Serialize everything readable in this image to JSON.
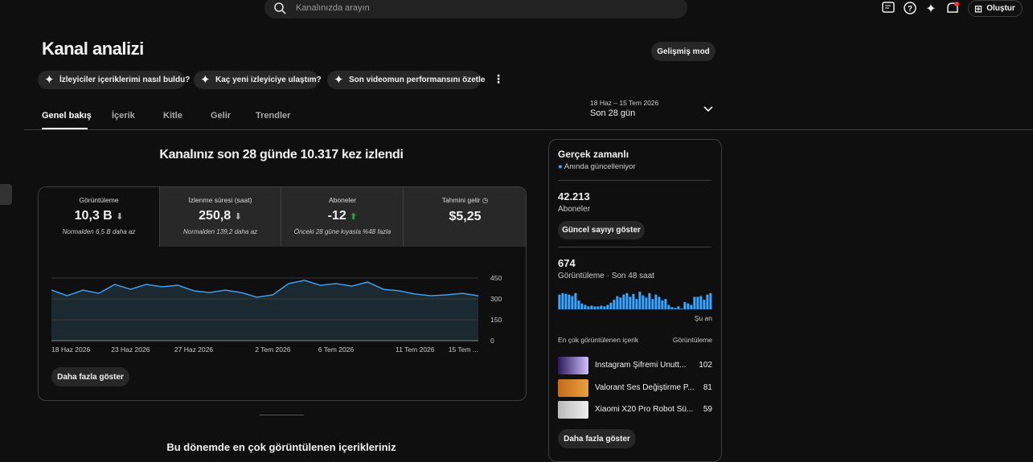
{
  "header": {
    "search_placeholder": "Kanalınızda arayın",
    "create": "Oluştur"
  },
  "page": {
    "title": "Kanal analizi",
    "advanced_mode": "Gelişmiş mod"
  },
  "suggestions": [
    "İzleyiciler içeriklerimi nasıl buldu?",
    "Kaç yeni izleyiciye ulaştım?",
    "Son videomun performansını özetle"
  ],
  "tabs": [
    "Genel bakış",
    "İçerik",
    "Kitle",
    "Gelir",
    "Trendler"
  ],
  "date_range": {
    "range": "18 Haz – 15 Tem 2026",
    "label": "Son 28 gün"
  },
  "summary": {
    "headline": "Kanalınız son 28 günde 10.317 kez izlendi",
    "more": "Daha fazla göster",
    "section_heading": "Bu dönemde en çok görüntülenen içerikleriniz"
  },
  "metrics": [
    {
      "label": "Görüntüleme",
      "value": "10,3 B",
      "note": "Normalden 6,5 B daha az"
    },
    {
      "label": "İzlenme süresi (saat)",
      "value": "250,8",
      "note": "Normalden 139,2 daha az"
    },
    {
      "label": "Aboneler",
      "value": "-12",
      "note": "Önceki 28 güne kıyasla %48 fazla"
    },
    {
      "label": "Tahmini gelir",
      "value": "$5,25"
    }
  ],
  "realtime": {
    "title": "Gerçek zamanlı",
    "status": "Anında güncelleniyor",
    "subscribers": "42.213",
    "subscribers_label": "Aboneler",
    "show_count": "Güncel sayıyı göster",
    "views": "674",
    "views_label": "Görüntüleme · Son 48 saat",
    "now": "Şu an",
    "top_header": "En çok görüntülenen içerik",
    "top_metric": "Görüntüleme",
    "more": "Daha fazla göster",
    "top_content": [
      {
        "title": "Instagram Şifremi Unutt...",
        "views": 102
      },
      {
        "title": "Valorant Ses Değiştirme P...",
        "views": 81
      },
      {
        "title": "Xiaomi X20 Pro Robot Sü...",
        "views": 59
      }
    ]
  },
  "chart_data": [
    {
      "type": "line",
      "categories": [
        "18 Haz 2026",
        null,
        null,
        null,
        null,
        "23 Haz 2026",
        null,
        null,
        null,
        "27 Haz 2026",
        null,
        null,
        null,
        null,
        "2 Tem 2026",
        null,
        null,
        null,
        "6 Tem 2026",
        null,
        null,
        null,
        null,
        "11 Tem 2026",
        null,
        null,
        null,
        "15 Tem ..."
      ],
      "values": [
        363,
        323,
        363,
        340,
        404,
        369,
        404,
        387,
        398,
        358,
        346,
        363,
        346,
        312,
        329,
        410,
        433,
        398,
        410,
        392,
        421,
        369,
        358,
        335,
        323,
        329,
        340,
        323
      ],
      "color": "#3ea6ff",
      "ylim": [
        0,
        450
      ],
      "yticks": [
        0,
        150,
        300,
        450
      ],
      "grid": true
    },
    {
      "type": "bar",
      "values": [
        20,
        22,
        21,
        20,
        18,
        22,
        12,
        8,
        6,
        4,
        5,
        4,
        4,
        5,
        4,
        6,
        9,
        13,
        18,
        16,
        20,
        22,
        17,
        21,
        14,
        24,
        19,
        16,
        22,
        14,
        20,
        17,
        12,
        14,
        6,
        3,
        2,
        4,
        1,
        10,
        8,
        6,
        17,
        17,
        18,
        13,
        20,
        22
      ],
      "color": "#3ea6ff"
    }
  ]
}
